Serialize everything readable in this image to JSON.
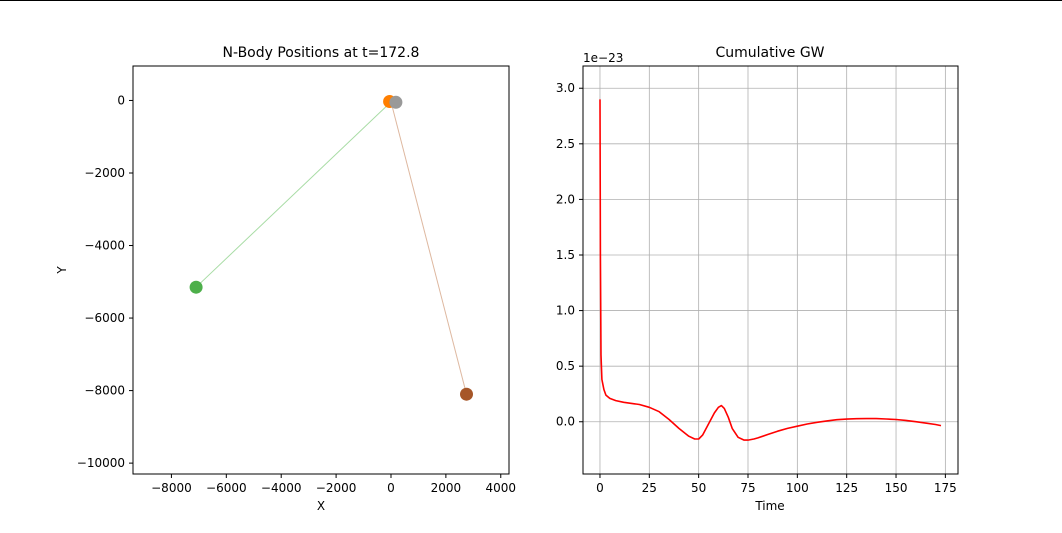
{
  "chart_data": [
    {
      "type": "scatter",
      "title": "N-Body Positions at t=172.8",
      "xlabel": "X",
      "ylabel": "Y",
      "xlim": [
        -9400,
        4300
      ],
      "ylim": [
        -10300,
        950
      ],
      "xticks": [
        -8000,
        -6000,
        -4000,
        -2000,
        0,
        2000,
        4000
      ],
      "yticks": [
        0,
        -2000,
        -4000,
        -6000,
        -8000,
        -10000
      ],
      "grid": false,
      "bodies": [
        {
          "x": -7100,
          "y": -5150,
          "color": "#4daf4a"
        },
        {
          "x": 2750,
          "y": -8100,
          "color": "#a65628"
        },
        {
          "x": -50,
          "y": -30,
          "color": "#ff7f00"
        },
        {
          "x": 180,
          "y": -50,
          "color": "#999999"
        }
      ],
      "trails": [
        {
          "x": [
            -7100,
            0
          ],
          "y": [
            -5150,
            -40
          ],
          "color": "#a8dca5"
        },
        {
          "x": [
            2750,
            0
          ],
          "y": [
            -8100,
            -40
          ],
          "color": "#deb8a0"
        }
      ]
    },
    {
      "type": "line",
      "title": "Cumulative GW",
      "xlabel": "Time",
      "ylabel": "",
      "offset_label": "1e−23",
      "xlim": [
        -8.6,
        181.4
      ],
      "ylim": [
        -0.47,
        3.2
      ],
      "xticks": [
        0,
        25,
        50,
        75,
        100,
        125,
        150,
        175
      ],
      "yticks": [
        0.0,
        0.5,
        1.0,
        1.5,
        2.0,
        2.5,
        3.0
      ],
      "grid": true,
      "series": [
        {
          "color": "#ff0000",
          "x": [
            0,
            0.2,
            0.5,
            1,
            2,
            3,
            5,
            8,
            12,
            16,
            20,
            25,
            30,
            35,
            40,
            45,
            48,
            50,
            52,
            55,
            58,
            60,
            61.5,
            63,
            65,
            67,
            70,
            73,
            75,
            78,
            80,
            85,
            90,
            95,
            100,
            105,
            110,
            115,
            120,
            125,
            130,
            135,
            140,
            145,
            150,
            155,
            160,
            165,
            170,
            172.8
          ],
          "y": [
            2.9,
            1.5,
            0.6,
            0.38,
            0.29,
            0.24,
            0.21,
            0.19,
            0.175,
            0.165,
            0.155,
            0.13,
            0.09,
            0.02,
            -0.06,
            -0.13,
            -0.155,
            -0.155,
            -0.12,
            -0.02,
            0.08,
            0.13,
            0.145,
            0.12,
            0.04,
            -0.06,
            -0.14,
            -0.165,
            -0.165,
            -0.155,
            -0.145,
            -0.115,
            -0.085,
            -0.06,
            -0.04,
            -0.02,
            -0.005,
            0.008,
            0.018,
            0.024,
            0.027,
            0.028,
            0.028,
            0.025,
            0.02,
            0.012,
            0.0,
            -0.012,
            -0.025,
            -0.035
          ]
        }
      ]
    }
  ]
}
